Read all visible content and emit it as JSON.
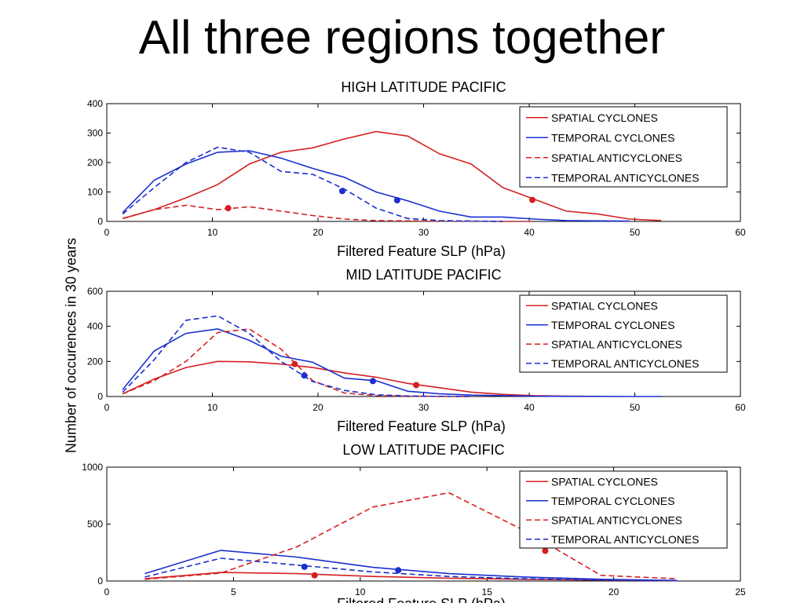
{
  "slide": {
    "title": "All three regions together",
    "ylabel": "Number of occurences in 30 years"
  },
  "colors": {
    "red": "#d42020",
    "blue": "#1a2fd0"
  },
  "chart_data": [
    {
      "type": "line",
      "title": "HIGH LATITUDE PACIFIC",
      "xlabel": "Filtered Feature SLP (hPa)",
      "xlim": [
        0,
        60
      ],
      "ylim": [
        0,
        400
      ],
      "xticks": [
        0,
        10,
        20,
        30,
        40,
        50,
        60
      ],
      "yticks": [
        0,
        100,
        200,
        300,
        400
      ],
      "legend_position": "top-right",
      "series": [
        {
          "name": "SPATIAL CYCLONES",
          "color": "red",
          "dash": false,
          "x": [
            1.5,
            4.5,
            7.5,
            10.5,
            13.5,
            16.5,
            19.5,
            22.5,
            25.5,
            28.5,
            31.5,
            34.5,
            37.5,
            40.5,
            43.5,
            46.5,
            49.5,
            52.5
          ],
          "y": [
            10,
            40,
            80,
            125,
            195,
            235,
            250,
            280,
            305,
            290,
            230,
            195,
            115,
            75,
            35,
            25,
            8,
            3
          ],
          "marker": [
            40.3,
            73
          ]
        },
        {
          "name": "TEMPORAL CYCLONES",
          "color": "blue",
          "dash": false,
          "x": [
            1.5,
            4.5,
            7.5,
            10.5,
            13.5,
            16.5,
            19.5,
            22.5,
            25.5,
            28.5,
            31.5,
            34.5,
            37.5,
            40.5,
            43.5,
            46.5,
            49.5
          ],
          "y": [
            30,
            140,
            195,
            235,
            240,
            215,
            180,
            150,
            100,
            70,
            35,
            15,
            15,
            8,
            3,
            2,
            1
          ],
          "marker": [
            27.5,
            72
          ]
        },
        {
          "name": "SPATIAL ANTICYCLONES",
          "color": "red",
          "dash": true,
          "x": [
            1.5,
            4.5,
            7.5,
            10.5,
            13.5,
            16.5,
            19.5,
            22.5,
            25.5,
            28.5,
            31.5,
            34.5,
            37.5,
            40.5
          ],
          "y": [
            10,
            40,
            55,
            40,
            50,
            35,
            20,
            8,
            3,
            2,
            1,
            1,
            0,
            0
          ],
          "marker": [
            11.5,
            45
          ]
        },
        {
          "name": "TEMPORAL ANTICYCLONES",
          "color": "blue",
          "dash": true,
          "x": [
            1.5,
            4.5,
            7.5,
            10.5,
            13.5,
            16.5,
            19.5,
            22.5,
            25.5,
            28.5,
            31.5,
            34.5,
            37.5
          ],
          "y": [
            25,
            115,
            200,
            252,
            235,
            170,
            160,
            110,
            45,
            10,
            3,
            1,
            0
          ],
          "marker": [
            22.3,
            103
          ]
        }
      ]
    },
    {
      "type": "line",
      "title": "MID LATITUDE PACIFIC",
      "xlabel": "Filtered Feature SLP (hPa)",
      "xlim": [
        0,
        60
      ],
      "ylim": [
        0,
        600
      ],
      "xticks": [
        0,
        10,
        20,
        30,
        40,
        50,
        60
      ],
      "yticks": [
        0,
        200,
        400,
        600
      ],
      "legend_position": "top-right",
      "series": [
        {
          "name": "SPATIAL CYCLONES",
          "color": "red",
          "dash": false,
          "x": [
            1.5,
            4.5,
            7.5,
            10.5,
            13.5,
            16.5,
            19.5,
            22.5,
            25.5,
            28.5,
            31.5,
            34.5,
            37.5,
            40.5,
            43.5,
            46.5
          ],
          "y": [
            15,
            100,
            165,
            200,
            198,
            185,
            165,
            135,
            110,
            75,
            50,
            25,
            12,
            5,
            2,
            1
          ],
          "marker": [
            29.3,
            65
          ]
        },
        {
          "name": "TEMPORAL CYCLONES",
          "color": "blue",
          "dash": false,
          "x": [
            1.5,
            4.5,
            7.5,
            10.5,
            13.5,
            16.5,
            19.5,
            22.5,
            25.5,
            28.5,
            31.5,
            34.5,
            37.5,
            40.5,
            43.5,
            46.5,
            49.5,
            52.5
          ],
          "y": [
            40,
            260,
            360,
            385,
            320,
            230,
            195,
            105,
            90,
            30,
            15,
            8,
            5,
            2,
            1,
            1,
            0,
            0
          ],
          "marker": [
            25.2,
            88
          ]
        },
        {
          "name": "SPATIAL ANTICYCLONES",
          "color": "red",
          "dash": true,
          "x": [
            1.5,
            4.5,
            7.5,
            10.5,
            13.5,
            16.5,
            19.5,
            22.5,
            25.5,
            28.5,
            31.5,
            34.5
          ],
          "y": [
            15,
            90,
            200,
            365,
            385,
            270,
            90,
            20,
            5,
            2,
            1,
            0
          ],
          "marker": [
            17.8,
            185
          ]
        },
        {
          "name": "TEMPORAL ANTICYCLONES",
          "color": "blue",
          "dash": true,
          "x": [
            1.5,
            4.5,
            7.5,
            10.5,
            13.5,
            16.5,
            19.5,
            22.5,
            25.5,
            28.5,
            31.5,
            34.5
          ],
          "y": [
            25,
            210,
            435,
            460,
            360,
            200,
            85,
            35,
            10,
            3,
            1,
            0
          ],
          "marker": [
            18.7,
            120
          ]
        }
      ]
    },
    {
      "type": "line",
      "title": "LOW LATITUDE PACIFIC",
      "xlabel": "Filtered Feature SLP (hPa)",
      "xlim": [
        0,
        25
      ],
      "ylim": [
        0,
        1000
      ],
      "xticks": [
        0,
        5,
        10,
        15,
        20,
        25
      ],
      "yticks": [
        0,
        500,
        1000
      ],
      "legend_position": "top-right",
      "series": [
        {
          "name": "SPATIAL CYCLONES",
          "color": "red",
          "dash": false,
          "x": [
            1.5,
            4.5,
            7.5,
            10.5,
            13.5,
            16.5,
            19.5,
            22.5
          ],
          "y": [
            20,
            75,
            65,
            40,
            25,
            15,
            8,
            3
          ],
          "marker": [
            8.2,
            50
          ]
        },
        {
          "name": "TEMPORAL CYCLONES",
          "color": "blue",
          "dash": false,
          "x": [
            1.5,
            4.5,
            7.5,
            10.5,
            13.5,
            16.5,
            19.5,
            22.5
          ],
          "y": [
            65,
            270,
            210,
            120,
            65,
            35,
            15,
            5
          ],
          "marker": [
            11.5,
            95
          ]
        },
        {
          "name": "SPATIAL ANTICYCLONES",
          "color": "red",
          "dash": true,
          "x": [
            1.5,
            4.5,
            7.5,
            10.5,
            13.5,
            16.5,
            19.5,
            22.5
          ],
          "y": [
            15,
            70,
            300,
            650,
            775,
            440,
            50,
            20
          ],
          "marker": [
            17.3,
            265
          ]
        },
        {
          "name": "TEMPORAL ANTICYCLONES",
          "color": "blue",
          "dash": true,
          "x": [
            1.5,
            4.5,
            7.5,
            10.5,
            13.5,
            16.5,
            19.5,
            22.5
          ],
          "y": [
            35,
            200,
            140,
            80,
            40,
            20,
            8,
            3
          ],
          "marker": [
            7.8,
            125
          ]
        }
      ]
    }
  ]
}
